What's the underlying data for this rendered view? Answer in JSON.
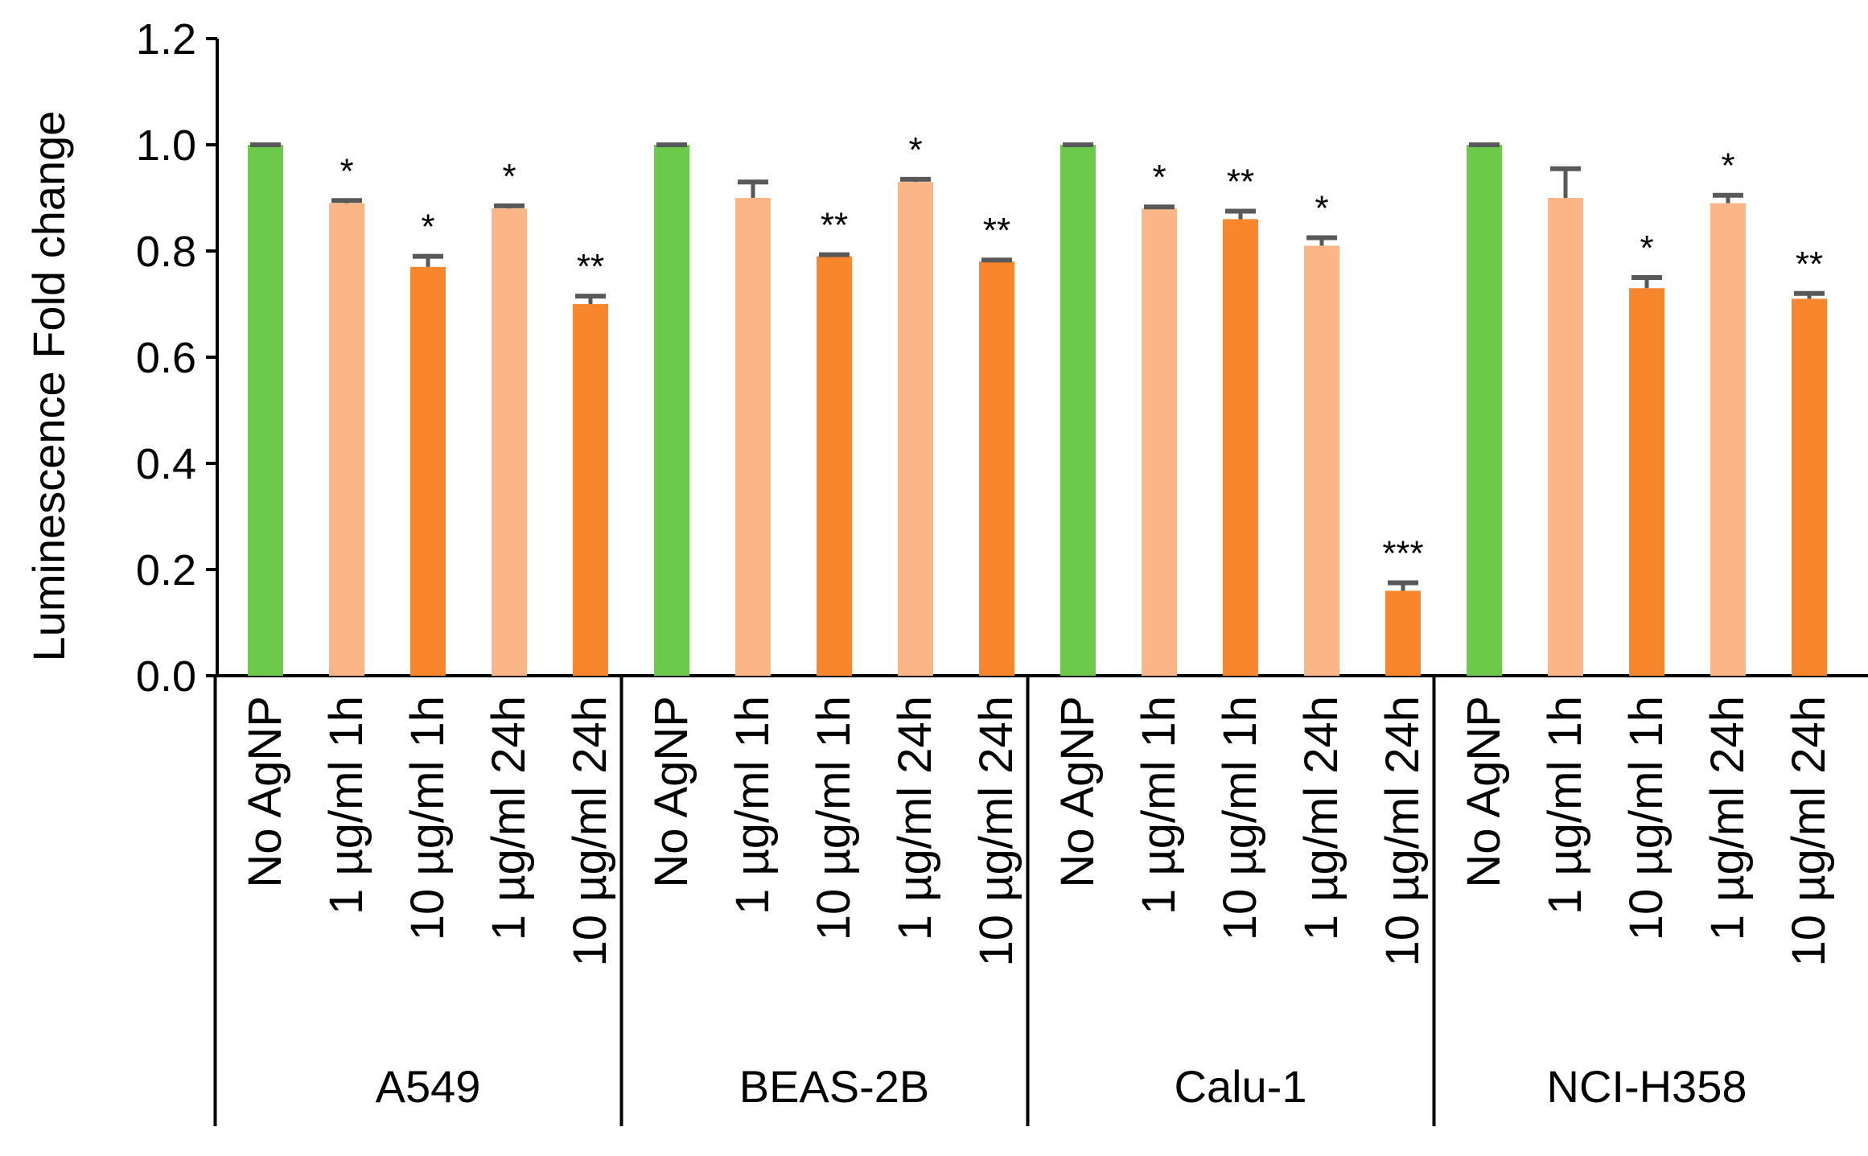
{
  "chart_data": {
    "type": "bar",
    "title": "",
    "xlabel": "",
    "ylabel": "Luminescence Fold change",
    "ylim": [
      0,
      1.2
    ],
    "yticks": [
      "0.0",
      "0.2",
      "0.4",
      "0.6",
      "0.8",
      "1.0",
      "1.2"
    ],
    "grid": false,
    "conditions": [
      "No AgNP",
      "1 µg/ml 1h",
      "10 µg/ml 1h",
      "1 µg/ml 24h",
      "10 µg/ml 24h"
    ],
    "groups": [
      {
        "name": "A549",
        "values": [
          1.0,
          0.89,
          0.77,
          0.88,
          0.7
        ],
        "errors": [
          0.0,
          0.005,
          0.02,
          0.005,
          0.015
        ],
        "sig": [
          "",
          "*",
          "*",
          "*",
          "**"
        ]
      },
      {
        "name": "BEAS-2B",
        "values": [
          1.0,
          0.9,
          0.79,
          0.93,
          0.78
        ],
        "errors": [
          0.0,
          0.03,
          0.003,
          0.005,
          0.003
        ],
        "sig": [
          "",
          "",
          "**",
          "*",
          "**"
        ]
      },
      {
        "name": "Calu-1",
        "values": [
          1.0,
          0.88,
          0.86,
          0.81,
          0.16
        ],
        "errors": [
          0.0,
          0.003,
          0.015,
          0.015,
          0.015
        ],
        "sig": [
          "",
          "*",
          "**",
          "*",
          "***"
        ]
      },
      {
        "name": "NCI-H358",
        "values": [
          1.0,
          0.9,
          0.73,
          0.89,
          0.71
        ],
        "errors": [
          0.0,
          0.055,
          0.02,
          0.015,
          0.01
        ],
        "sig": [
          "",
          "",
          "*",
          "*",
          "**"
        ]
      }
    ],
    "colors": {
      "control": "#6cc94a",
      "one_ug": "#fbb587",
      "ten_ug": "#f7862d",
      "error_bar": "#595959",
      "axis": "#000000"
    }
  }
}
